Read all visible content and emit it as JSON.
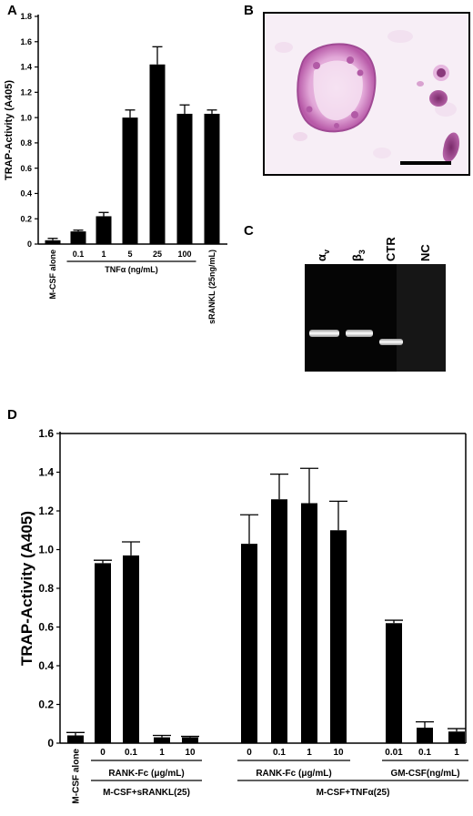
{
  "panels": {
    "A": "A",
    "B": "B",
    "C": "C",
    "D": "D"
  },
  "gel": {
    "lanes": [
      "αv",
      "β3",
      "CTR",
      "NC"
    ],
    "alpha_v": {
      "base": "α",
      "sub": "v"
    },
    "beta_3": {
      "base": "β",
      "sub": "3"
    }
  },
  "chart_data": [
    {
      "id": "A",
      "type": "bar",
      "ylabel": "TRAP-Activity (A405)",
      "xlabel": "",
      "ylim": [
        0,
        1.8
      ],
      "yticks": [
        "0",
        "0.2",
        "0.4",
        "0.6",
        "0.8",
        "1.0",
        "1.2",
        "1.4",
        "1.6",
        "1.8"
      ],
      "categories": [
        "M-CSF alone",
        "0.1",
        "1",
        "5",
        "25",
        "100",
        "sRANKL (25ng/mL)"
      ],
      "values": [
        0.03,
        0.1,
        0.22,
        1.0,
        1.42,
        1.03,
        1.03
      ],
      "errors": [
        0.015,
        0.01,
        0.03,
        0.06,
        0.14,
        0.07,
        0.03
      ],
      "group_labels": [
        {
          "text": "TNFα (ng/mL)",
          "from": 1,
          "to": 5
        }
      ]
    },
    {
      "id": "D",
      "type": "bar",
      "ylabel": "TRAP-Activity (A405)",
      "xlabel": "",
      "ylim": [
        0,
        1.6
      ],
      "yticks": [
        "0",
        "0.2",
        "0.4",
        "0.6",
        "0.8",
        "1.0",
        "1.2",
        "1.4",
        "1.6"
      ],
      "categories": [
        "M-CSF alone",
        "0",
        "0.1",
        "1",
        "10",
        "0",
        "0.1",
        "1",
        "10",
        "0.01",
        "0.1",
        "1"
      ],
      "values": [
        0.04,
        0.93,
        0.97,
        0.03,
        0.03,
        1.03,
        1.26,
        1.24,
        1.1,
        0.62,
        0.08,
        0.06
      ],
      "errors": [
        0.015,
        0.015,
        0.07,
        0.01,
        0.005,
        0.15,
        0.13,
        0.18,
        0.15,
        0.015,
        0.03,
        0.015
      ],
      "group_labels": [
        {
          "text": "RANK-Fc (μg/mL)",
          "from": 1,
          "to": 4
        },
        {
          "text": "RANK-Fc (μg/mL)",
          "from": 5,
          "to": 8
        },
        {
          "text": "GM-CSF(ng/mL)",
          "from": 9,
          "to": 11
        }
      ],
      "outer_group_labels": [
        {
          "text": "M-CSF+sRANKL(25)",
          "from": 1,
          "to": 4
        },
        {
          "text": "M-CSF+TNFα(25)",
          "from": 5,
          "to": 11
        }
      ]
    }
  ]
}
